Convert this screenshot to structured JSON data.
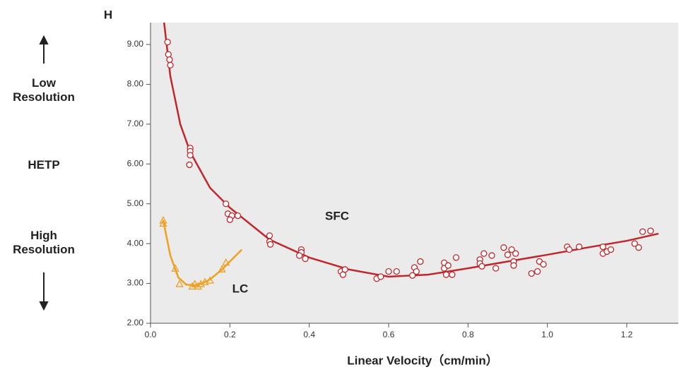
{
  "chart_data": {
    "type": "scatter",
    "ylabel": "H",
    "xlabel": "Linear Velocity（cm/min）",
    "y_annotations": [
      "Low Resolution",
      "HETP",
      "High Resolution"
    ],
    "xlim": [
      0,
      1.33
    ],
    "ylim": [
      2,
      9.55
    ],
    "xticks": [
      {
        "value": 0,
        "label": "0.0"
      },
      0.2,
      0.4,
      0.6,
      0.8,
      {
        "value": 1,
        "label": "1.0"
      },
      1.2
    ],
    "yticks": [
      {
        "value": 2,
        "label": "2.00"
      },
      {
        "value": 3,
        "label": "3.00"
      },
      {
        "value": 4,
        "label": "4.00"
      },
      {
        "value": 5,
        "label": "5.00"
      },
      {
        "value": 6,
        "label": "6.00"
      },
      {
        "value": 7,
        "label": "7.00"
      },
      {
        "value": 8,
        "label": "8.00"
      },
      {
        "value": 9,
        "label": "9.00"
      }
    ],
    "background": "#ebebeb",
    "series": [
      {
        "name": "SFC",
        "color": "#c0272d",
        "marker": "circle",
        "x": [
          0.043,
          0.045,
          0.048,
          0.05,
          0.1,
          0.1,
          0.1,
          0.098,
          0.19,
          0.195,
          0.205,
          0.2,
          0.22,
          0.3,
          0.3,
          0.302,
          0.38,
          0.38,
          0.375,
          0.39,
          0.48,
          0.485,
          0.49,
          0.57,
          0.58,
          0.6,
          0.62,
          0.66,
          0.665,
          0.67,
          0.68,
          0.74,
          0.74,
          0.745,
          0.75,
          0.76,
          0.77,
          0.83,
          0.83,
          0.835,
          0.84,
          0.86,
          0.87,
          0.89,
          0.9,
          0.91,
          0.915,
          0.915,
          0.92,
          0.96,
          0.975,
          0.98,
          0.99,
          1.05,
          1.055,
          1.08,
          1.14,
          1.14,
          1.15,
          1.16,
          1.22,
          1.23,
          1.24,
          1.26
        ],
        "values": [
          9.06,
          8.75,
          8.62,
          8.48,
          6.4,
          6.32,
          6.22,
          5.98,
          5.0,
          4.75,
          4.7,
          4.6,
          4.7,
          4.2,
          4.05,
          3.98,
          3.85,
          3.78,
          3.7,
          3.62,
          3.3,
          3.22,
          3.35,
          3.12,
          3.17,
          3.3,
          3.3,
          3.2,
          3.4,
          3.3,
          3.55,
          3.52,
          3.38,
          3.22,
          3.45,
          3.22,
          3.65,
          3.6,
          3.5,
          3.43,
          3.75,
          3.7,
          3.38,
          3.9,
          3.72,
          3.85,
          3.55,
          3.45,
          3.75,
          3.25,
          3.3,
          3.55,
          3.48,
          3.92,
          3.85,
          3.92,
          3.92,
          3.75,
          3.8,
          3.85,
          4.0,
          3.9,
          4.3,
          4.32
        ],
        "curve_x": [
          0.034,
          0.05,
          0.075,
          0.1,
          0.15,
          0.2,
          0.3,
          0.4,
          0.5,
          0.6,
          0.7,
          0.8,
          0.9,
          1.0,
          1.1,
          1.2,
          1.28
        ],
        "curve_values": [
          9.57,
          8.2,
          7.0,
          6.3,
          5.4,
          4.9,
          4.1,
          3.65,
          3.35,
          3.17,
          3.22,
          3.38,
          3.55,
          3.72,
          3.9,
          4.07,
          4.25
        ]
      },
      {
        "name": "LC",
        "color": "#f0a020",
        "marker": "triangle",
        "x": [
          0.032,
          0.032,
          0.0625,
          0.073,
          0.105,
          0.112,
          0.12,
          0.127,
          0.137,
          0.15,
          0.18,
          0.19
        ],
        "values": [
          4.58,
          4.5,
          3.37,
          2.98,
          2.92,
          2.98,
          2.92,
          2.98,
          3.03,
          3.07,
          3.35,
          3.52
        ],
        "curve_x": [
          0.032,
          0.05,
          0.07,
          0.09,
          0.11,
          0.13,
          0.15,
          0.18,
          0.2,
          0.23
        ],
        "curve_values": [
          4.58,
          3.7,
          3.15,
          2.97,
          2.95,
          3.0,
          3.1,
          3.35,
          3.55,
          3.85
        ]
      }
    ]
  }
}
